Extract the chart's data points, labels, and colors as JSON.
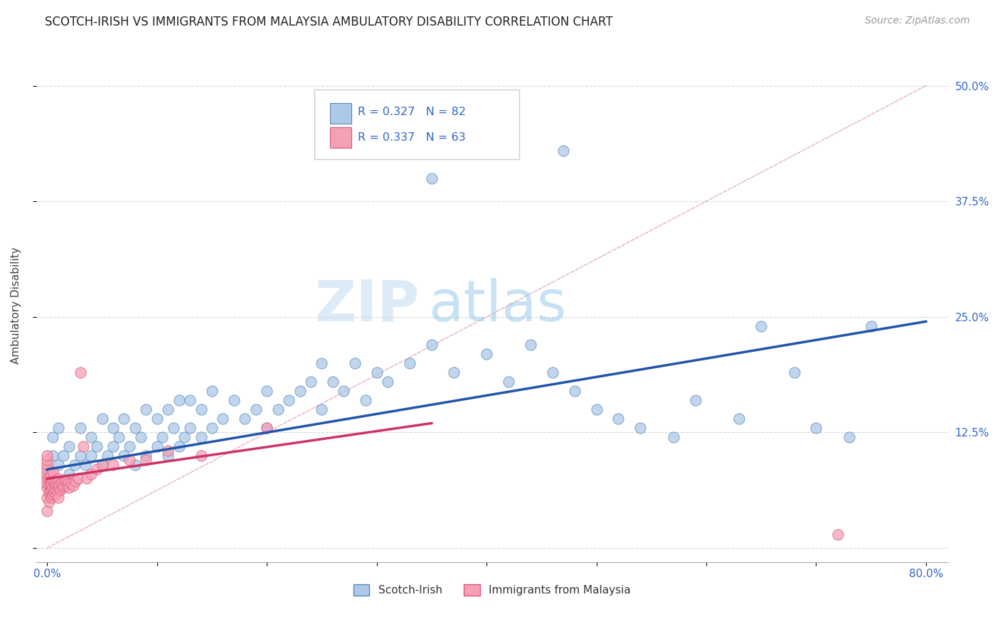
{
  "title": "SCOTCH-IRISH VS IMMIGRANTS FROM MALAYSIA AMBULATORY DISABILITY CORRELATION CHART",
  "source": "Source: ZipAtlas.com",
  "ylabel": "Ambulatory Disability",
  "xlim": [
    -0.01,
    0.82
  ],
  "ylim": [
    -0.015,
    0.54
  ],
  "x_tick_positions": [
    0.0,
    0.1,
    0.2,
    0.3,
    0.4,
    0.5,
    0.6,
    0.7,
    0.8
  ],
  "x_tick_labels": [
    "0.0%",
    "",
    "",
    "",
    "",
    "",
    "",
    "",
    "80.0%"
  ],
  "y_tick_positions": [
    0.0,
    0.125,
    0.25,
    0.375,
    0.5
  ],
  "y_tick_labels_right": [
    "",
    "12.5%",
    "25.0%",
    "37.5%",
    "50.0%"
  ],
  "series1_color": "#adc8e8",
  "series2_color": "#f5a0b5",
  "series1_edge": "#5588bb",
  "series2_edge": "#dd5577",
  "trend1_color": "#2255aa",
  "trend2_color": "#cc3366",
  "diagonal_color": "#e8b0bb",
  "grid_color": "#cccccc",
  "R1": 0.327,
  "N1": 82,
  "R2": 0.337,
  "N2": 63,
  "legend1_label": "Scotch-Irish",
  "legend2_label": "Immigrants from Malaysia",
  "watermark_zip": "ZIP",
  "watermark_atlas": "atlas",
  "background_color": "#ffffff",
  "title_color": "#222222",
  "source_color": "#999999",
  "axis_color": "#3366cc",
  "trend1_start_x": 0.0,
  "trend1_start_y": 0.085,
  "trend1_end_x": 0.8,
  "trend1_end_y": 0.245,
  "trend2_start_x": 0.0,
  "trend2_start_y": 0.075,
  "trend2_end_x": 0.35,
  "trend2_end_y": 0.135
}
